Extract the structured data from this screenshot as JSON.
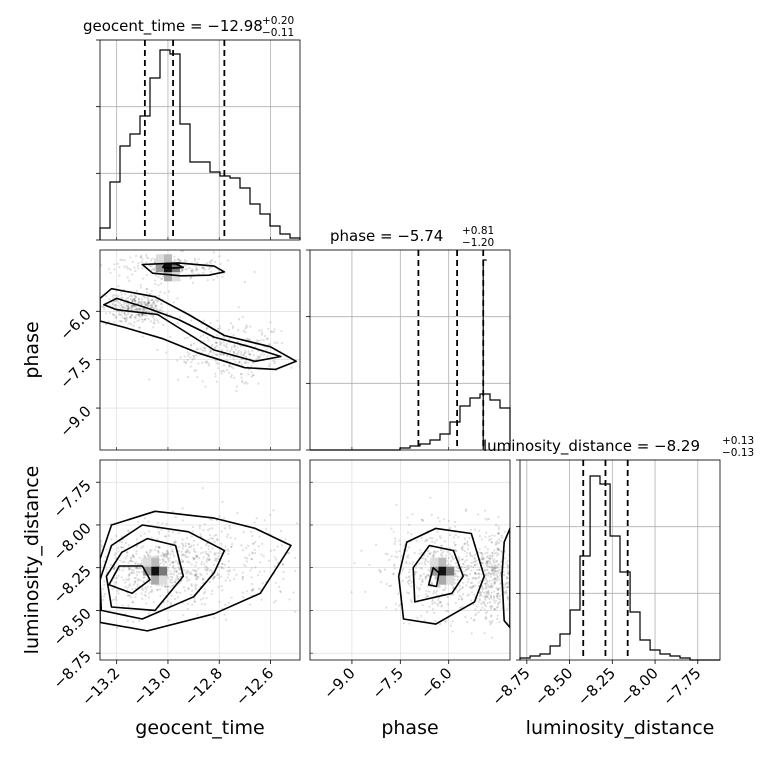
{
  "chart_data": {
    "type": "corner",
    "parameters": [
      "geocent_time",
      "phase",
      "luminosity_distance"
    ],
    "titles": [
      {
        "param": "geocent_time",
        "text": "geocent_time = −12.98",
        "plus": "+0.20",
        "minus": "−0.11"
      },
      {
        "param": "phase",
        "text": "phase = −5.74",
        "plus": "+0.81",
        "minus": "−1.20"
      },
      {
        "param": "luminosity_distance",
        "text": "luminosity_distance = −8.29",
        "plus": "+0.13",
        "minus": "−0.13"
      }
    ],
    "ranges": {
      "geocent_time": [
        -13.265,
        -12.485
      ],
      "phase": [
        -10.3,
        -4.1
      ],
      "luminosity_distance": [
        -8.79,
        -7.62
      ]
    },
    "ticks": {
      "geocent_time": {
        "values": [
          -13.2,
          -13.0,
          -12.8,
          -12.6
        ],
        "labels": [
          "−13.2",
          "−13.0",
          "−12.8",
          "−12.6"
        ]
      },
      "phase": {
        "values": [
          -9.0,
          -7.5,
          -6.0
        ],
        "labels": [
          "−9.0",
          "−7.5",
          "−6.0"
        ]
      },
      "luminosity_distance": {
        "values": [
          -8.75,
          -8.5,
          -8.25,
          -8.0,
          -7.75
        ],
        "labels": [
          "−8.75",
          "−8.50",
          "−8.25",
          "−8.00",
          "−7.75"
        ]
      }
    },
    "quantiles": {
      "geocent_time": [
        -13.09,
        -12.98,
        -12.78
      ],
      "phase": [
        -6.94,
        -5.74,
        -4.93
      ],
      "luminosity_distance": [
        -8.42,
        -8.29,
        -8.16
      ]
    },
    "histograms": {
      "geocent_time": {
        "edges": [
          -13.265,
          -13.226,
          -13.187,
          -13.148,
          -13.109,
          -13.07,
          -13.031,
          -12.992,
          -12.953,
          -12.914,
          -12.875,
          -12.836,
          -12.797,
          -12.758,
          -12.719,
          -12.68,
          -12.641,
          -12.602,
          -12.563,
          -12.524,
          -12.485
        ],
        "counts": [
          0.06,
          0.29,
          0.47,
          0.53,
          0.62,
          0.81,
          0.95,
          0.93,
          0.58,
          0.39,
          0.39,
          0.34,
          0.32,
          0.31,
          0.26,
          0.18,
          0.13,
          0.07,
          0.03,
          0.01
        ]
      },
      "phase": {
        "edges": [
          -10.3,
          -9.99,
          -9.68,
          -9.37,
          -9.06,
          -8.75,
          -8.44,
          -8.13,
          -7.82,
          -7.51,
          -7.2,
          -6.89,
          -6.58,
          -6.27,
          -5.96,
          -5.65,
          -5.34,
          -5.03,
          -4.72,
          -4.41,
          -4.1
        ],
        "counts": [
          0.0,
          0.0,
          0.0,
          0.0,
          0.0,
          0.0,
          0.0,
          0.0,
          0.0,
          0.01,
          0.02,
          0.03,
          0.05,
          0.08,
          0.14,
          0.22,
          0.26,
          0.28,
          0.25,
          0.21
        ],
        "partial_last": {
          "x": [
            -4.93,
            -4.82
          ],
          "count": 0.95
        }
      },
      "luminosity_distance": {
        "edges": [
          -8.79,
          -8.731,
          -8.673,
          -8.614,
          -8.556,
          -8.497,
          -8.439,
          -8.38,
          -8.322,
          -8.263,
          -8.205,
          -8.146,
          -8.088,
          -8.029,
          -7.971,
          -7.912,
          -7.854,
          -7.795,
          -7.737,
          -7.678,
          -7.62
        ],
        "counts": [
          0.01,
          0.02,
          0.03,
          0.07,
          0.13,
          0.25,
          0.52,
          0.92,
          0.88,
          0.62,
          0.44,
          0.24,
          0.1,
          0.05,
          0.03,
          0.02,
          0.01,
          0.0,
          0.0,
          0.0
        ]
      }
    },
    "contours": {
      "phase_vs_geocent_time": [
        [
          [
            -13.02,
            -4.64
          ],
          [
            -12.98,
            -4.66
          ],
          [
            -12.94,
            -4.64
          ],
          [
            -12.97,
            -4.53
          ],
          [
            -13.01,
            -4.52
          ]
        ],
        [
          [
            -13.06,
            -4.82
          ],
          [
            -12.95,
            -4.9
          ],
          [
            -12.84,
            -4.88
          ],
          [
            -12.78,
            -4.78
          ],
          [
            -12.82,
            -4.6
          ],
          [
            -12.96,
            -4.5
          ],
          [
            -13.1,
            -4.55
          ]
        ],
        [
          [
            -13.2,
            -5.95
          ],
          [
            -13.04,
            -6.1
          ],
          [
            -12.95,
            -6.55
          ],
          [
            -12.82,
            -7.2
          ],
          [
            -12.66,
            -7.55
          ],
          [
            -12.56,
            -7.4
          ],
          [
            -12.68,
            -7.1
          ],
          [
            -12.82,
            -6.8
          ],
          [
            -12.96,
            -6.25
          ],
          [
            -13.08,
            -5.9
          ],
          [
            -13.2,
            -5.6
          ],
          [
            -13.25,
            -5.8
          ]
        ],
        [
          [
            -13.265,
            -6.3
          ],
          [
            -13.17,
            -6.5
          ],
          [
            -13.02,
            -6.85
          ],
          [
            -12.88,
            -7.3
          ],
          [
            -12.7,
            -7.75
          ],
          [
            -12.58,
            -7.8
          ],
          [
            -12.5,
            -7.55
          ],
          [
            -12.6,
            -7.1
          ],
          [
            -12.78,
            -6.75
          ],
          [
            -12.92,
            -6.1
          ],
          [
            -13.05,
            -5.55
          ],
          [
            -13.22,
            -5.3
          ],
          [
            -13.265,
            -5.6
          ]
        ]
      ],
      "luminosity_distance_vs_geocent_time": [
        [
          [
            -13.23,
            -8.35
          ],
          [
            -13.14,
            -8.4
          ],
          [
            -13.07,
            -8.32
          ],
          [
            -13.1,
            -8.24
          ],
          [
            -13.19,
            -8.24
          ]
        ],
        [
          [
            -13.22,
            -8.48
          ],
          [
            -13.05,
            -8.5
          ],
          [
            -12.94,
            -8.3
          ],
          [
            -12.97,
            -8.12
          ],
          [
            -13.08,
            -8.08
          ],
          [
            -13.18,
            -8.16
          ],
          [
            -13.24,
            -8.3
          ]
        ],
        [
          [
            -13.26,
            -8.5
          ],
          [
            -13.1,
            -8.55
          ],
          [
            -12.9,
            -8.42
          ],
          [
            -12.82,
            -8.28
          ],
          [
            -12.78,
            -8.15
          ],
          [
            -12.92,
            -8.04
          ],
          [
            -13.1,
            -8.0
          ],
          [
            -13.22,
            -8.12
          ],
          [
            -13.265,
            -8.32
          ]
        ],
        [
          [
            -13.265,
            -8.57
          ],
          [
            -13.08,
            -8.62
          ],
          [
            -12.82,
            -8.52
          ],
          [
            -12.64,
            -8.4
          ],
          [
            -12.52,
            -8.12
          ],
          [
            -12.66,
            -8.02
          ],
          [
            -12.82,
            -7.96
          ],
          [
            -13.05,
            -7.92
          ],
          [
            -13.22,
            -8.0
          ],
          [
            -13.265,
            -8.2
          ]
        ]
      ],
      "luminosity_distance_vs_phase": [
        [
          [
            -6.62,
            -8.35
          ],
          [
            -6.38,
            -8.36
          ],
          [
            -6.3,
            -8.28
          ],
          [
            -6.48,
            -8.25
          ]
        ],
        [
          [
            -7.05,
            -8.45
          ],
          [
            -5.9,
            -8.4
          ],
          [
            -5.55,
            -8.3
          ],
          [
            -5.85,
            -8.15
          ],
          [
            -6.6,
            -8.12
          ],
          [
            -7.1,
            -8.25
          ]
        ],
        [
          [
            -7.4,
            -8.55
          ],
          [
            -6.4,
            -8.58
          ],
          [
            -5.2,
            -8.45
          ],
          [
            -4.9,
            -8.3
          ],
          [
            -5.3,
            -8.05
          ],
          [
            -6.4,
            -8.02
          ],
          [
            -7.3,
            -8.1
          ],
          [
            -7.55,
            -8.3
          ]
        ],
        [
          [
            -4.1,
            -8.6
          ],
          [
            -4.28,
            -8.56
          ],
          [
            -4.35,
            -8.3
          ],
          [
            -4.28,
            -8.1
          ],
          [
            -4.1,
            -8.02
          ]
        ]
      ]
    }
  }
}
